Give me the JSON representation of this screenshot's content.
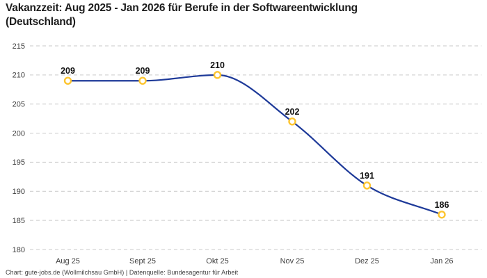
{
  "header": {
    "title_line1": "Vakanzzeit: Aug 2025 - Jan 2026 für Berufe in der Softwareentwicklung",
    "title_line2": "(Deutschland)"
  },
  "footer": {
    "attribution": "Chart: gute-jobs.de (Wollmilchsau GmbH) | Datenquelle: Bundesagentur für Arbeit"
  },
  "chart_data": {
    "type": "line",
    "title": "Vakanzzeit: Aug 2025 - Jan 2026 für Berufe in der Softwareentwicklung (Deutschland)",
    "categories": [
      "Aug 25",
      "Sept 25",
      "Okt 25",
      "Nov 25",
      "Dez 25",
      "Jan 26"
    ],
    "values": [
      209,
      209,
      210,
      202,
      191,
      186
    ],
    "data_labels": [
      "209",
      "209",
      "210",
      "202",
      "191",
      "186"
    ],
    "xlabel": "",
    "ylabel": "",
    "ylim": [
      180,
      215
    ],
    "ytick_step": 5,
    "yticks": [
      180,
      185,
      190,
      195,
      200,
      205,
      210,
      215
    ],
    "grid": "horizontal-dashed",
    "legend": "none",
    "smooth": true,
    "colors": {
      "line": "#1e3a99",
      "marker_ring": "#fdc530",
      "marker_fill": "#ffffff",
      "gridline": "#c9c9c9",
      "tick_text": "#404040",
      "data_label_text": "#111111"
    }
  }
}
